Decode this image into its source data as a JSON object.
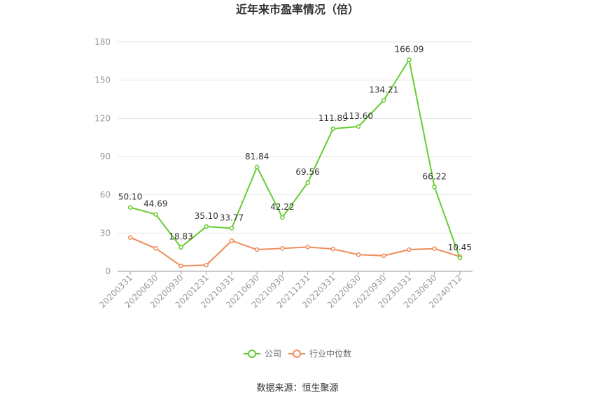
{
  "chart_data": {
    "type": "line",
    "title": "近年来市盈率情况（倍）",
    "categories": [
      "20200331",
      "20200630",
      "20200930",
      "20201231",
      "20210331",
      "20210630",
      "20210930",
      "20211231",
      "20220331",
      "20220630",
      "20220930",
      "20230331",
      "20230630",
      "20240712"
    ],
    "series": [
      {
        "name": "公司",
        "color": "#66cc33",
        "values": [
          50.1,
          44.69,
          18.83,
          35.1,
          33.77,
          81.84,
          42.22,
          69.56,
          111.89,
          113.6,
          134.21,
          166.09,
          66.22,
          10.45
        ],
        "labels": [
          "50.10",
          "44.69",
          "18.83",
          "35.10",
          "33.77",
          "81.84",
          "42.22",
          "69.56",
          "111.89",
          "113.60",
          "134.21",
          "166.09",
          "66.22",
          "10.45"
        ]
      },
      {
        "name": "行业中位数",
        "color": "#f08c5a",
        "values": [
          26.5,
          18.0,
          4.2,
          4.8,
          24.0,
          17.0,
          18.0,
          19.0,
          17.5,
          13.0,
          12.2,
          17.0,
          17.8,
          11.5
        ]
      }
    ],
    "ylim": [
      0,
      180
    ],
    "yticks": [
      "0",
      "30",
      "60",
      "90",
      "120",
      "150",
      "180"
    ],
    "grid": true,
    "legend": "bottom"
  },
  "source_text": "数据来源：恒生聚源"
}
